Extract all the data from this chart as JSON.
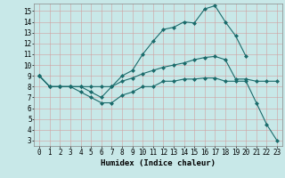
{
  "xlabel": "Humidex (Indice chaleur)",
  "xlim": [
    -0.5,
    23.5
  ],
  "ylim": [
    2.5,
    15.7
  ],
  "xticks": [
    0,
    1,
    2,
    3,
    4,
    5,
    6,
    7,
    8,
    9,
    10,
    11,
    12,
    13,
    14,
    15,
    16,
    17,
    18,
    19,
    20,
    21,
    22,
    23
  ],
  "yticks": [
    3,
    4,
    5,
    6,
    7,
    8,
    9,
    10,
    11,
    12,
    13,
    14,
    15
  ],
  "background_color": "#c8e8e8",
  "grid_color": "#b0c8c8",
  "line_color": "#1a6b6b",
  "line1_x": [
    0,
    1,
    2,
    3,
    4,
    5,
    6,
    7,
    8,
    9,
    10,
    11,
    12,
    13,
    14,
    15,
    16,
    17,
    18,
    19,
    20
  ],
  "line1_y": [
    9,
    8,
    8,
    8,
    8,
    7.5,
    7,
    8,
    9,
    9.5,
    11,
    12.2,
    13.3,
    13.5,
    14,
    13.9,
    15.2,
    15.5,
    14,
    12.7,
    10.8
  ],
  "line1_marker_x": [
    0,
    1,
    2,
    3,
    5,
    6,
    7,
    8,
    10,
    11,
    12,
    13,
    14,
    15,
    16,
    17,
    18,
    19,
    20
  ],
  "line1_marker_y": [
    9,
    8,
    8,
    8,
    7.5,
    7,
    8,
    9,
    11,
    12.2,
    13.3,
    13.5,
    14,
    13.9,
    15.2,
    15.5,
    14,
    12.7,
    10.8
  ],
  "line2_x": [
    0,
    1,
    2,
    3,
    4,
    5,
    6,
    7,
    8,
    9,
    10,
    11,
    12,
    13,
    14,
    15,
    16,
    17,
    18,
    19,
    20,
    21,
    22,
    23
  ],
  "line2_y": [
    9,
    8,
    8,
    8,
    8,
    8,
    8,
    8,
    8.5,
    8.8,
    9.2,
    9.5,
    9.8,
    10,
    10.2,
    10.5,
    10.7,
    10.8,
    10.5,
    8.7,
    8.7,
    8.5,
    8.5,
    8.5
  ],
  "line2_marker_x": [
    0,
    1,
    2,
    3,
    7,
    8,
    9,
    10,
    11,
    13,
    14,
    16,
    17,
    19,
    20,
    21
  ],
  "line2_marker_y": [
    9,
    8,
    8,
    8,
    8,
    8.5,
    8.8,
    9.2,
    9.5,
    10,
    10.2,
    10.7,
    10.8,
    8.7,
    8.7,
    8.5
  ],
  "line3_x": [
    0,
    1,
    2,
    3,
    4,
    5,
    6,
    7,
    8,
    9,
    10,
    11,
    12,
    13,
    14,
    15,
    16,
    17,
    18,
    19,
    20,
    21,
    22,
    23
  ],
  "line3_y": [
    9,
    8,
    8,
    8,
    7.5,
    7,
    6.5,
    6.5,
    7.2,
    7.5,
    8,
    8,
    8.5,
    8.5,
    8.7,
    8.7,
    8.8,
    8.8,
    8.5,
    8.5,
    8.5,
    6.5,
    4.5,
    3
  ],
  "line3_marker_x": [
    0,
    1,
    2,
    3,
    5,
    6,
    7,
    9,
    10,
    12,
    14,
    16,
    20,
    21,
    22,
    23
  ],
  "line3_marker_y": [
    9,
    8,
    8,
    8,
    7,
    6.5,
    6.5,
    7.5,
    8,
    8.5,
    8.7,
    8.8,
    8.5,
    6.5,
    4.5,
    3
  ]
}
